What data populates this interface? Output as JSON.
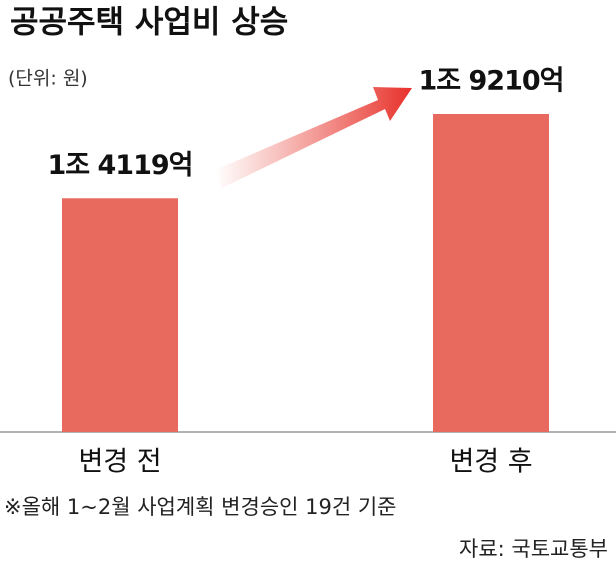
{
  "chart_data": {
    "type": "bar",
    "title": "공공주택 사업비 상승",
    "subtitle": "(단위: 원)",
    "categories": [
      "변경 전",
      "변경 후"
    ],
    "values": [
      14119,
      19210
    ],
    "value_labels": [
      "1조 4119억",
      "1조 9210억"
    ],
    "color": "#e86a5f",
    "note": "※올해 1~2월 사업계획 변경승인 19건 기준",
    "source": "자료: 국토교통부"
  }
}
